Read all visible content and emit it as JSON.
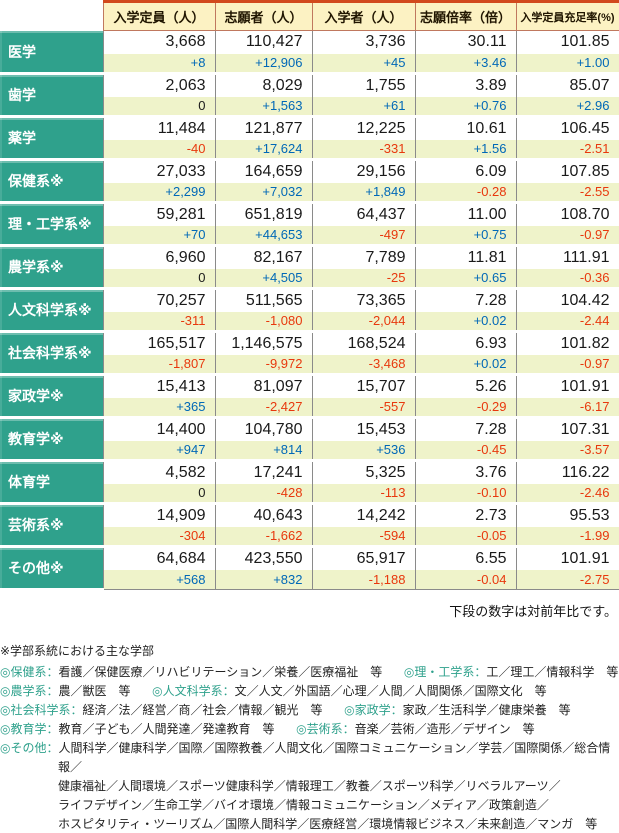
{
  "colors": {
    "accent": "#2FA18C",
    "header_bg": "#FCF2C3",
    "header_border": "#C0785E",
    "header_top": "#D2491D",
    "change_bg": "#EFF3CA",
    "grid": "#8A8A8A",
    "positive": "#0068B7",
    "negative": "#E8380D"
  },
  "note": "下段の数字は対前年比です。",
  "table": {
    "columns": [
      {
        "label": "入学定員（人）",
        "small": false
      },
      {
        "label": "志願者（人）",
        "small": false
      },
      {
        "label": "入学者（人）",
        "small": false
      },
      {
        "label": "志願倍率（倍）",
        "small": false
      },
      {
        "label": "入学定員充足率(%)",
        "small": true
      }
    ],
    "rows": [
      {
        "label": "医学",
        "values": [
          "3,668",
          "110,427",
          "3,736",
          "30.11",
          "101.85"
        ],
        "changes": [
          [
            "+8",
            "pos"
          ],
          [
            "+12,906",
            "pos"
          ],
          [
            "+45",
            "pos"
          ],
          [
            "+3.46",
            "pos"
          ],
          [
            "+1.00",
            "pos"
          ]
        ]
      },
      {
        "label": "歯学",
        "values": [
          "2,063",
          "8,029",
          "1,755",
          "3.89",
          "85.07"
        ],
        "changes": [
          [
            "0",
            "zero"
          ],
          [
            "+1,563",
            "pos"
          ],
          [
            "+61",
            "pos"
          ],
          [
            "+0.76",
            "pos"
          ],
          [
            "+2.96",
            "pos"
          ]
        ]
      },
      {
        "label": "薬学",
        "values": [
          "11,484",
          "121,877",
          "12,225",
          "10.61",
          "106.45"
        ],
        "changes": [
          [
            "-40",
            "neg"
          ],
          [
            "+17,624",
            "pos"
          ],
          [
            "-331",
            "neg"
          ],
          [
            "+1.56",
            "pos"
          ],
          [
            "-2.51",
            "neg"
          ]
        ]
      },
      {
        "label": "保健系※",
        "values": [
          "27,033",
          "164,659",
          "29,156",
          "6.09",
          "107.85"
        ],
        "changes": [
          [
            "+2,299",
            "pos"
          ],
          [
            "+7,032",
            "pos"
          ],
          [
            "+1,849",
            "pos"
          ],
          [
            "-0.28",
            "neg"
          ],
          [
            "-2.55",
            "neg"
          ]
        ]
      },
      {
        "label": "理・工学系※",
        "values": [
          "59,281",
          "651,819",
          "64,437",
          "11.00",
          "108.70"
        ],
        "changes": [
          [
            "+70",
            "pos"
          ],
          [
            "+44,653",
            "pos"
          ],
          [
            "-497",
            "neg"
          ],
          [
            "+0.75",
            "pos"
          ],
          [
            "-0.97",
            "neg"
          ]
        ]
      },
      {
        "label": "農学系※",
        "values": [
          "6,960",
          "82,167",
          "7,789",
          "11.81",
          "111.91"
        ],
        "changes": [
          [
            "0",
            "zero"
          ],
          [
            "+4,505",
            "pos"
          ],
          [
            "-25",
            "neg"
          ],
          [
            "+0.65",
            "pos"
          ],
          [
            "-0.36",
            "neg"
          ]
        ]
      },
      {
        "label": "人文科学系※",
        "values": [
          "70,257",
          "511,565",
          "73,365",
          "7.28",
          "104.42"
        ],
        "changes": [
          [
            "-311",
            "neg"
          ],
          [
            "-1,080",
            "neg"
          ],
          [
            "-2,044",
            "neg"
          ],
          [
            "+0.02",
            "pos"
          ],
          [
            "-2.44",
            "neg"
          ]
        ]
      },
      {
        "label": "社会科学系※",
        "values": [
          "165,517",
          "1,146,575",
          "168,524",
          "6.93",
          "101.82"
        ],
        "changes": [
          [
            "-1,807",
            "neg"
          ],
          [
            "-9,972",
            "neg"
          ],
          [
            "-3,468",
            "neg"
          ],
          [
            "+0.02",
            "pos"
          ],
          [
            "-0.97",
            "neg"
          ]
        ]
      },
      {
        "label": "家政学※",
        "values": [
          "15,413",
          "81,097",
          "15,707",
          "5.26",
          "101.91"
        ],
        "changes": [
          [
            "+365",
            "pos"
          ],
          [
            "-2,427",
            "neg"
          ],
          [
            "-557",
            "neg"
          ],
          [
            "-0.29",
            "neg"
          ],
          [
            "-6.17",
            "neg"
          ]
        ]
      },
      {
        "label": "教育学※",
        "values": [
          "14,400",
          "104,780",
          "15,453",
          "7.28",
          "107.31"
        ],
        "changes": [
          [
            "+947",
            "pos"
          ],
          [
            "+814",
            "pos"
          ],
          [
            "+536",
            "pos"
          ],
          [
            "-0.45",
            "neg"
          ],
          [
            "-3.57",
            "neg"
          ]
        ]
      },
      {
        "label": "体育学",
        "values": [
          "4,582",
          "17,241",
          "5,325",
          "3.76",
          "116.22"
        ],
        "changes": [
          [
            "0",
            "zero"
          ],
          [
            "-428",
            "neg"
          ],
          [
            "-113",
            "neg"
          ],
          [
            "-0.10",
            "neg"
          ],
          [
            "-2.46",
            "neg"
          ]
        ]
      },
      {
        "label": "芸術系※",
        "values": [
          "14,909",
          "40,643",
          "14,242",
          "2.73",
          "95.53"
        ],
        "changes": [
          [
            "-304",
            "neg"
          ],
          [
            "-1,662",
            "neg"
          ],
          [
            "-594",
            "neg"
          ],
          [
            "-0.05",
            "neg"
          ],
          [
            "-1.99",
            "neg"
          ]
        ]
      },
      {
        "label": "その他※",
        "values": [
          "64,684",
          "423,550",
          "65,917",
          "6.55",
          "101.91"
        ],
        "changes": [
          [
            "+568",
            "pos"
          ],
          [
            "+832",
            "pos"
          ],
          [
            "-1,188",
            "neg"
          ],
          [
            "-0.04",
            "neg"
          ],
          [
            "-2.75",
            "neg"
          ]
        ]
      }
    ]
  },
  "footnotes": {
    "title": "※学部系統における主な学部",
    "lines": [
      [
        {
          "label": "◎保健系：",
          "text": "看護／保健医療／リハビリテーション／栄養／医療福祉　等"
        },
        {
          "label": "◎理・工学系：",
          "text": "工／理工／情報科学　等"
        }
      ],
      [
        {
          "label": "◎農学系：",
          "text": "農／獣医　等"
        },
        {
          "label": "◎人文科学系：",
          "text": "文／人文／外国語／心理／人間／人間関係／国際文化　等"
        }
      ],
      [
        {
          "label": "◎社会科学系：",
          "text": "経済／法／経営／商／社会／情報／観光　等"
        },
        {
          "label": "◎家政学：",
          "text": "家政／生活科学／健康栄養　等"
        }
      ],
      [
        {
          "label": "◎教育学：",
          "text": "教育／子ども／人間発達／発達教育　等"
        },
        {
          "label": "◎芸術系：",
          "text": "音楽／芸術／造形／デザイン　等"
        }
      ],
      [
        {
          "label": "◎その他：",
          "text_lines": [
            "人間科学／健康科学／国際／国際教養／人間文化／国際コミュニケーション／学芸／国際関係／総合情報／",
            "健康福祉／人間環境／スポーツ健康科学／情報理工／教養／スポーツ科学／リベラルアーツ／",
            "ライフデザイン／生命工学／バイオ環境／情報コミュニケーション／メディア／政策創造／",
            "ホスピタリティ・ツーリズム／国際人間科学／医療経営／環境情報ビジネス／未来創造／マンガ　等"
          ]
        }
      ]
    ]
  }
}
